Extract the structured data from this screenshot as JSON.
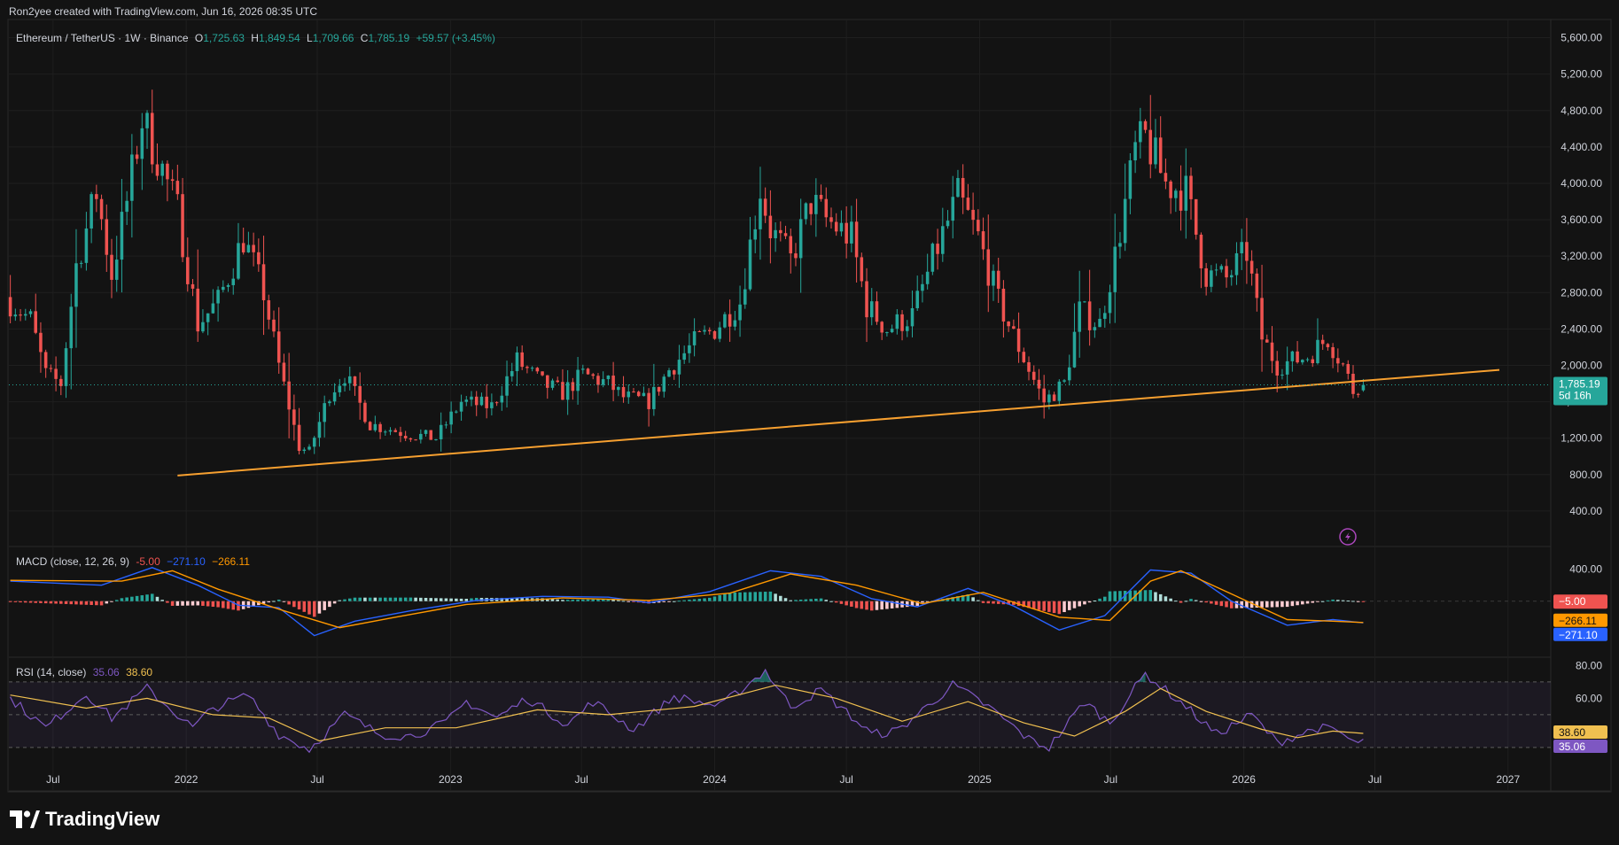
{
  "header": {
    "created_text": "Ron2yee created with TradingView.com, Jun 16, 2026 08:35 UTC"
  },
  "legend": {
    "symbol": "Ethereum / TetherUS · 1W · Binance",
    "o_key": "O",
    "o_val": "1,725.63",
    "h_key": "H",
    "h_val": "1,849.54",
    "l_key": "L",
    "l_val": "1,709.66",
    "c_key": "C",
    "c_val": "1,785.19",
    "change": "+59.57 (+3.45%)"
  },
  "macd_legend": {
    "title": "MACD (close, 12, 26, 9)",
    "hist": "-5.00",
    "macd": "−271.10",
    "signal": "−266.11"
  },
  "rsi_legend": {
    "title": "RSI (14, close)",
    "rsi": "35.06",
    "ma": "38.60"
  },
  "badges": {
    "price": "1,785.19",
    "countdown": "5d 16h",
    "macd_hist": "−5.00",
    "macd_signal": "−266.11",
    "macd_line": "−271.10",
    "rsi_ma": "38.60",
    "rsi": "35.06"
  },
  "colors": {
    "up": "#26a69a",
    "down": "#ef5350",
    "trend": "#f7a030",
    "macd": "#2962ff",
    "signal": "#ff9800",
    "rsi": "#7e57c2",
    "rsi_ma": "#f0c050",
    "bg": "#131313",
    "grid": "#1f1f1f",
    "text": "#d1d4dc"
  },
  "brand": {
    "name": "TradingView",
    "icon": "tradingview-logo-icon"
  },
  "alert_icon": "lightning-alert-icon",
  "chart_data": {
    "type": "candlestick",
    "symbol": "Ethereum / TetherUS",
    "interval": "1W",
    "price_axis": {
      "ticks": [
        400,
        800,
        1200,
        1600,
        2000,
        2400,
        2800,
        3200,
        3600,
        4000,
        4400,
        4800,
        5200,
        5600
      ],
      "range": [
        0,
        5800
      ]
    },
    "time_axis": {
      "start": "2021-05-01",
      "end": "2027-03-01",
      "labels": [
        {
          "d": "2021-07-01",
          "t": "Jul"
        },
        {
          "d": "2022-01-01",
          "t": "2022"
        },
        {
          "d": "2022-07-01",
          "t": "Jul"
        },
        {
          "d": "2023-01-01",
          "t": "2023"
        },
        {
          "d": "2023-07-01",
          "t": "Jul"
        },
        {
          "d": "2024-01-01",
          "t": "2024"
        },
        {
          "d": "2024-07-01",
          "t": "Jul"
        },
        {
          "d": "2025-01-01",
          "t": "2025"
        },
        {
          "d": "2025-07-01",
          "t": "Jul"
        },
        {
          "d": "2026-01-01",
          "t": "2026"
        },
        {
          "d": "2026-07-01",
          "t": "Jul"
        },
        {
          "d": "2027-01-01",
          "t": "2027"
        }
      ]
    },
    "price_path": [
      [
        "2021-05-03",
        2750
      ],
      [
        "2021-06-07",
        2500
      ],
      [
        "2021-06-28",
        1900
      ],
      [
        "2021-07-19",
        1800
      ],
      [
        "2021-08-09",
        3100
      ],
      [
        "2021-09-06",
        3900
      ],
      [
        "2021-09-27",
        3000
      ],
      [
        "2021-10-18",
        3800
      ],
      [
        "2021-11-08",
        4700
      ],
      [
        "2021-11-29",
        4300
      ],
      [
        "2021-12-27",
        3700
      ],
      [
        "2022-01-24",
        2450
      ],
      [
        "2022-02-21",
        2700
      ],
      [
        "2022-03-28",
        3400
      ],
      [
        "2022-04-25",
        2800
      ],
      [
        "2022-05-16",
        2000
      ],
      [
        "2022-06-13",
        1100
      ],
      [
        "2022-06-27",
        1050
      ],
      [
        "2022-07-25",
        1700
      ],
      [
        "2022-08-15",
        1900
      ],
      [
        "2022-09-19",
        1350
      ],
      [
        "2022-10-17",
        1300
      ],
      [
        "2022-11-07",
        1250
      ],
      [
        "2022-12-19",
        1200
      ],
      [
        "2023-01-23",
        1600
      ],
      [
        "2023-03-06",
        1550
      ],
      [
        "2023-04-10",
        2050
      ],
      [
        "2023-05-15",
        1800
      ],
      [
        "2023-06-12",
        1700
      ],
      [
        "2023-07-10",
        1900
      ],
      [
        "2023-08-14",
        1800
      ],
      [
        "2023-09-04",
        1650
      ],
      [
        "2023-10-09",
        1600
      ],
      [
        "2023-11-06",
        1950
      ],
      [
        "2023-12-11",
        2250
      ],
      [
        "2024-01-08",
        2400
      ],
      [
        "2024-02-12",
        2700
      ],
      [
        "2024-03-11",
        3950
      ],
      [
        "2024-03-25",
        3500
      ],
      [
        "2024-04-22",
        3150
      ],
      [
        "2024-05-20",
        3800
      ],
      [
        "2024-06-10",
        3600
      ],
      [
        "2024-07-15",
        3400
      ],
      [
        "2024-08-05",
        2650
      ],
      [
        "2024-09-02",
        2400
      ],
      [
        "2024-10-07",
        2550
      ],
      [
        "2024-11-11",
        3300
      ],
      [
        "2024-12-09",
        3850
      ],
      [
        "2025-01-06",
        3400
      ],
      [
        "2025-02-03",
        2700
      ],
      [
        "2025-03-03",
        2200
      ],
      [
        "2025-04-07",
        1600
      ],
      [
        "2025-05-05",
        1800
      ],
      [
        "2025-05-26",
        2600
      ],
      [
        "2025-06-23",
        2450
      ],
      [
        "2025-07-14",
        3200
      ],
      [
        "2025-08-11",
        4350
      ],
      [
        "2025-08-25",
        4500
      ],
      [
        "2025-09-22",
        4000
      ],
      [
        "2025-10-20",
        3900
      ],
      [
        "2025-11-17",
        3000
      ],
      [
        "2025-12-15",
        2950
      ],
      [
        "2026-01-12",
        3250
      ],
      [
        "2026-02-02",
        2300
      ],
      [
        "2026-02-23",
        2000
      ],
      [
        "2026-04-06",
        2100
      ],
      [
        "2026-05-04",
        2300
      ],
      [
        "2026-05-25",
        2000
      ],
      [
        "2026-06-08",
        1725
      ],
      [
        "2026-06-15",
        1785
      ]
    ],
    "last_candle": {
      "date": "2026-06-15",
      "open": 1725.63,
      "high": 1849.54,
      "low": 1709.66,
      "close": 1785.19,
      "change": 59.57,
      "change_pct": 3.45
    },
    "trendline": {
      "from": [
        "2021-12-20",
        790
      ],
      "to": [
        "2026-12-20",
        1950
      ]
    },
    "macd": {
      "params": [
        12,
        26,
        9
      ],
      "axis_ticks": [
        400
      ],
      "range": [
        -700,
        650
      ],
      "macd_path": [
        [
          "2021-05-03",
          250
        ],
        [
          "2021-09-06",
          200
        ],
        [
          "2021-11-15",
          420
        ],
        [
          "2022-01-17",
          200
        ],
        [
          "2022-03-14",
          -50
        ],
        [
          "2022-05-09",
          -80
        ],
        [
          "2022-06-27",
          -430
        ],
        [
          "2022-08-22",
          -250
        ],
        [
          "2022-11-07",
          -120
        ],
        [
          "2023-02-06",
          10
        ],
        [
          "2023-05-08",
          60
        ],
        [
          "2023-08-07",
          50
        ],
        [
          "2023-10-02",
          -20
        ],
        [
          "2023-12-25",
          120
        ],
        [
          "2024-03-18",
          380
        ],
        [
          "2024-05-27",
          310
        ],
        [
          "2024-08-05",
          30
        ],
        [
          "2024-10-07",
          -70
        ],
        [
          "2024-12-16",
          160
        ],
        [
          "2025-02-17",
          -60
        ],
        [
          "2025-04-21",
          -360
        ],
        [
          "2025-06-23",
          -180
        ],
        [
          "2025-08-25",
          390
        ],
        [
          "2025-10-20",
          350
        ],
        [
          "2025-12-15",
          0
        ],
        [
          "2026-03-02",
          -300
        ],
        [
          "2026-05-04",
          -230
        ],
        [
          "2026-06-15",
          -271.1
        ]
      ],
      "signal_path": [
        [
          "2021-05-03",
          260
        ],
        [
          "2021-10-04",
          250
        ],
        [
          "2021-12-13",
          380
        ],
        [
          "2022-02-14",
          150
        ],
        [
          "2022-05-16",
          -120
        ],
        [
          "2022-08-01",
          -330
        ],
        [
          "2022-10-17",
          -200
        ],
        [
          "2023-01-23",
          -40
        ],
        [
          "2023-06-05",
          40
        ],
        [
          "2023-10-02",
          10
        ],
        [
          "2024-01-22",
          100
        ],
        [
          "2024-04-15",
          340
        ],
        [
          "2024-07-15",
          200
        ],
        [
          "2024-10-14",
          -30
        ],
        [
          "2025-01-06",
          110
        ],
        [
          "2025-04-21",
          -200
        ],
        [
          "2025-06-30",
          -240
        ],
        [
          "2025-08-25",
          250
        ],
        [
          "2025-10-06",
          380
        ],
        [
          "2025-12-22",
          60
        ],
        [
          "2026-03-02",
          -230
        ],
        [
          "2026-05-04",
          -250
        ],
        [
          "2026-06-15",
          -266.11
        ]
      ],
      "hist_last": -5.0
    },
    "rsi": {
      "params": [
        14
      ],
      "levels": [
        30,
        50,
        70
      ],
      "axis_ticks": [
        60,
        80
      ],
      "range": [
        24,
        84
      ],
      "rsi_path": [
        [
          "2021-05-03",
          60
        ],
        [
          "2021-06-21",
          42
        ],
        [
          "2021-08-16",
          63
        ],
        [
          "2021-09-20",
          48
        ],
        [
          "2021-11-08",
          66
        ],
        [
          "2022-01-10",
          42
        ],
        [
          "2022-02-07",
          54
        ],
        [
          "2022-03-28",
          62
        ],
        [
          "2022-05-09",
          38
        ],
        [
          "2022-06-20",
          29
        ],
        [
          "2022-08-08",
          50
        ],
        [
          "2022-09-26",
          38
        ],
        [
          "2022-11-07",
          37
        ],
        [
          "2022-12-26",
          45
        ],
        [
          "2023-01-23",
          58
        ],
        [
          "2023-03-06",
          48
        ],
        [
          "2023-04-17",
          60
        ],
        [
          "2023-06-12",
          44
        ],
        [
          "2023-07-17",
          58
        ],
        [
          "2023-09-11",
          41
        ],
        [
          "2023-11-06",
          61
        ],
        [
          "2024-01-08",
          55
        ],
        [
          "2024-03-11",
          77
        ],
        [
          "2024-04-15",
          55
        ],
        [
          "2024-05-27",
          65
        ],
        [
          "2024-08-05",
          38
        ],
        [
          "2024-09-09",
          40
        ],
        [
          "2024-11-25",
          68
        ],
        [
          "2025-01-13",
          55
        ],
        [
          "2025-03-10",
          35
        ],
        [
          "2025-04-07",
          30
        ],
        [
          "2025-05-26",
          58
        ],
        [
          "2025-06-30",
          45
        ],
        [
          "2025-08-18",
          75
        ],
        [
          "2025-10-13",
          55
        ],
        [
          "2025-11-24",
          38
        ],
        [
          "2026-01-12",
          50
        ],
        [
          "2026-02-16",
          33
        ],
        [
          "2026-04-13",
          42
        ],
        [
          "2026-05-11",
          40
        ],
        [
          "2026-06-08",
          31
        ],
        [
          "2026-06-15",
          35.06
        ]
      ],
      "ma_path": [
        [
          "2021-05-03",
          62
        ],
        [
          "2021-08-16",
          54
        ],
        [
          "2021-11-08",
          60
        ],
        [
          "2022-02-07",
          50
        ],
        [
          "2022-04-25",
          48
        ],
        [
          "2022-07-04",
          34
        ],
        [
          "2022-10-03",
          42
        ],
        [
          "2023-01-09",
          42
        ],
        [
          "2023-05-01",
          53
        ],
        [
          "2023-08-07",
          50
        ],
        [
          "2023-12-04",
          55
        ],
        [
          "2024-03-25",
          68
        ],
        [
          "2024-06-17",
          60
        ],
        [
          "2024-09-16",
          46
        ],
        [
          "2024-12-16",
          58
        ],
        [
          "2025-03-03",
          45
        ],
        [
          "2025-05-12",
          37
        ],
        [
          "2025-07-21",
          52
        ],
        [
          "2025-09-08",
          66
        ],
        [
          "2025-11-10",
          52
        ],
        [
          "2026-01-26",
          41
        ],
        [
          "2026-03-16",
          36
        ],
        [
          "2026-05-04",
          40
        ],
        [
          "2026-06-15",
          38.6
        ]
      ]
    }
  }
}
